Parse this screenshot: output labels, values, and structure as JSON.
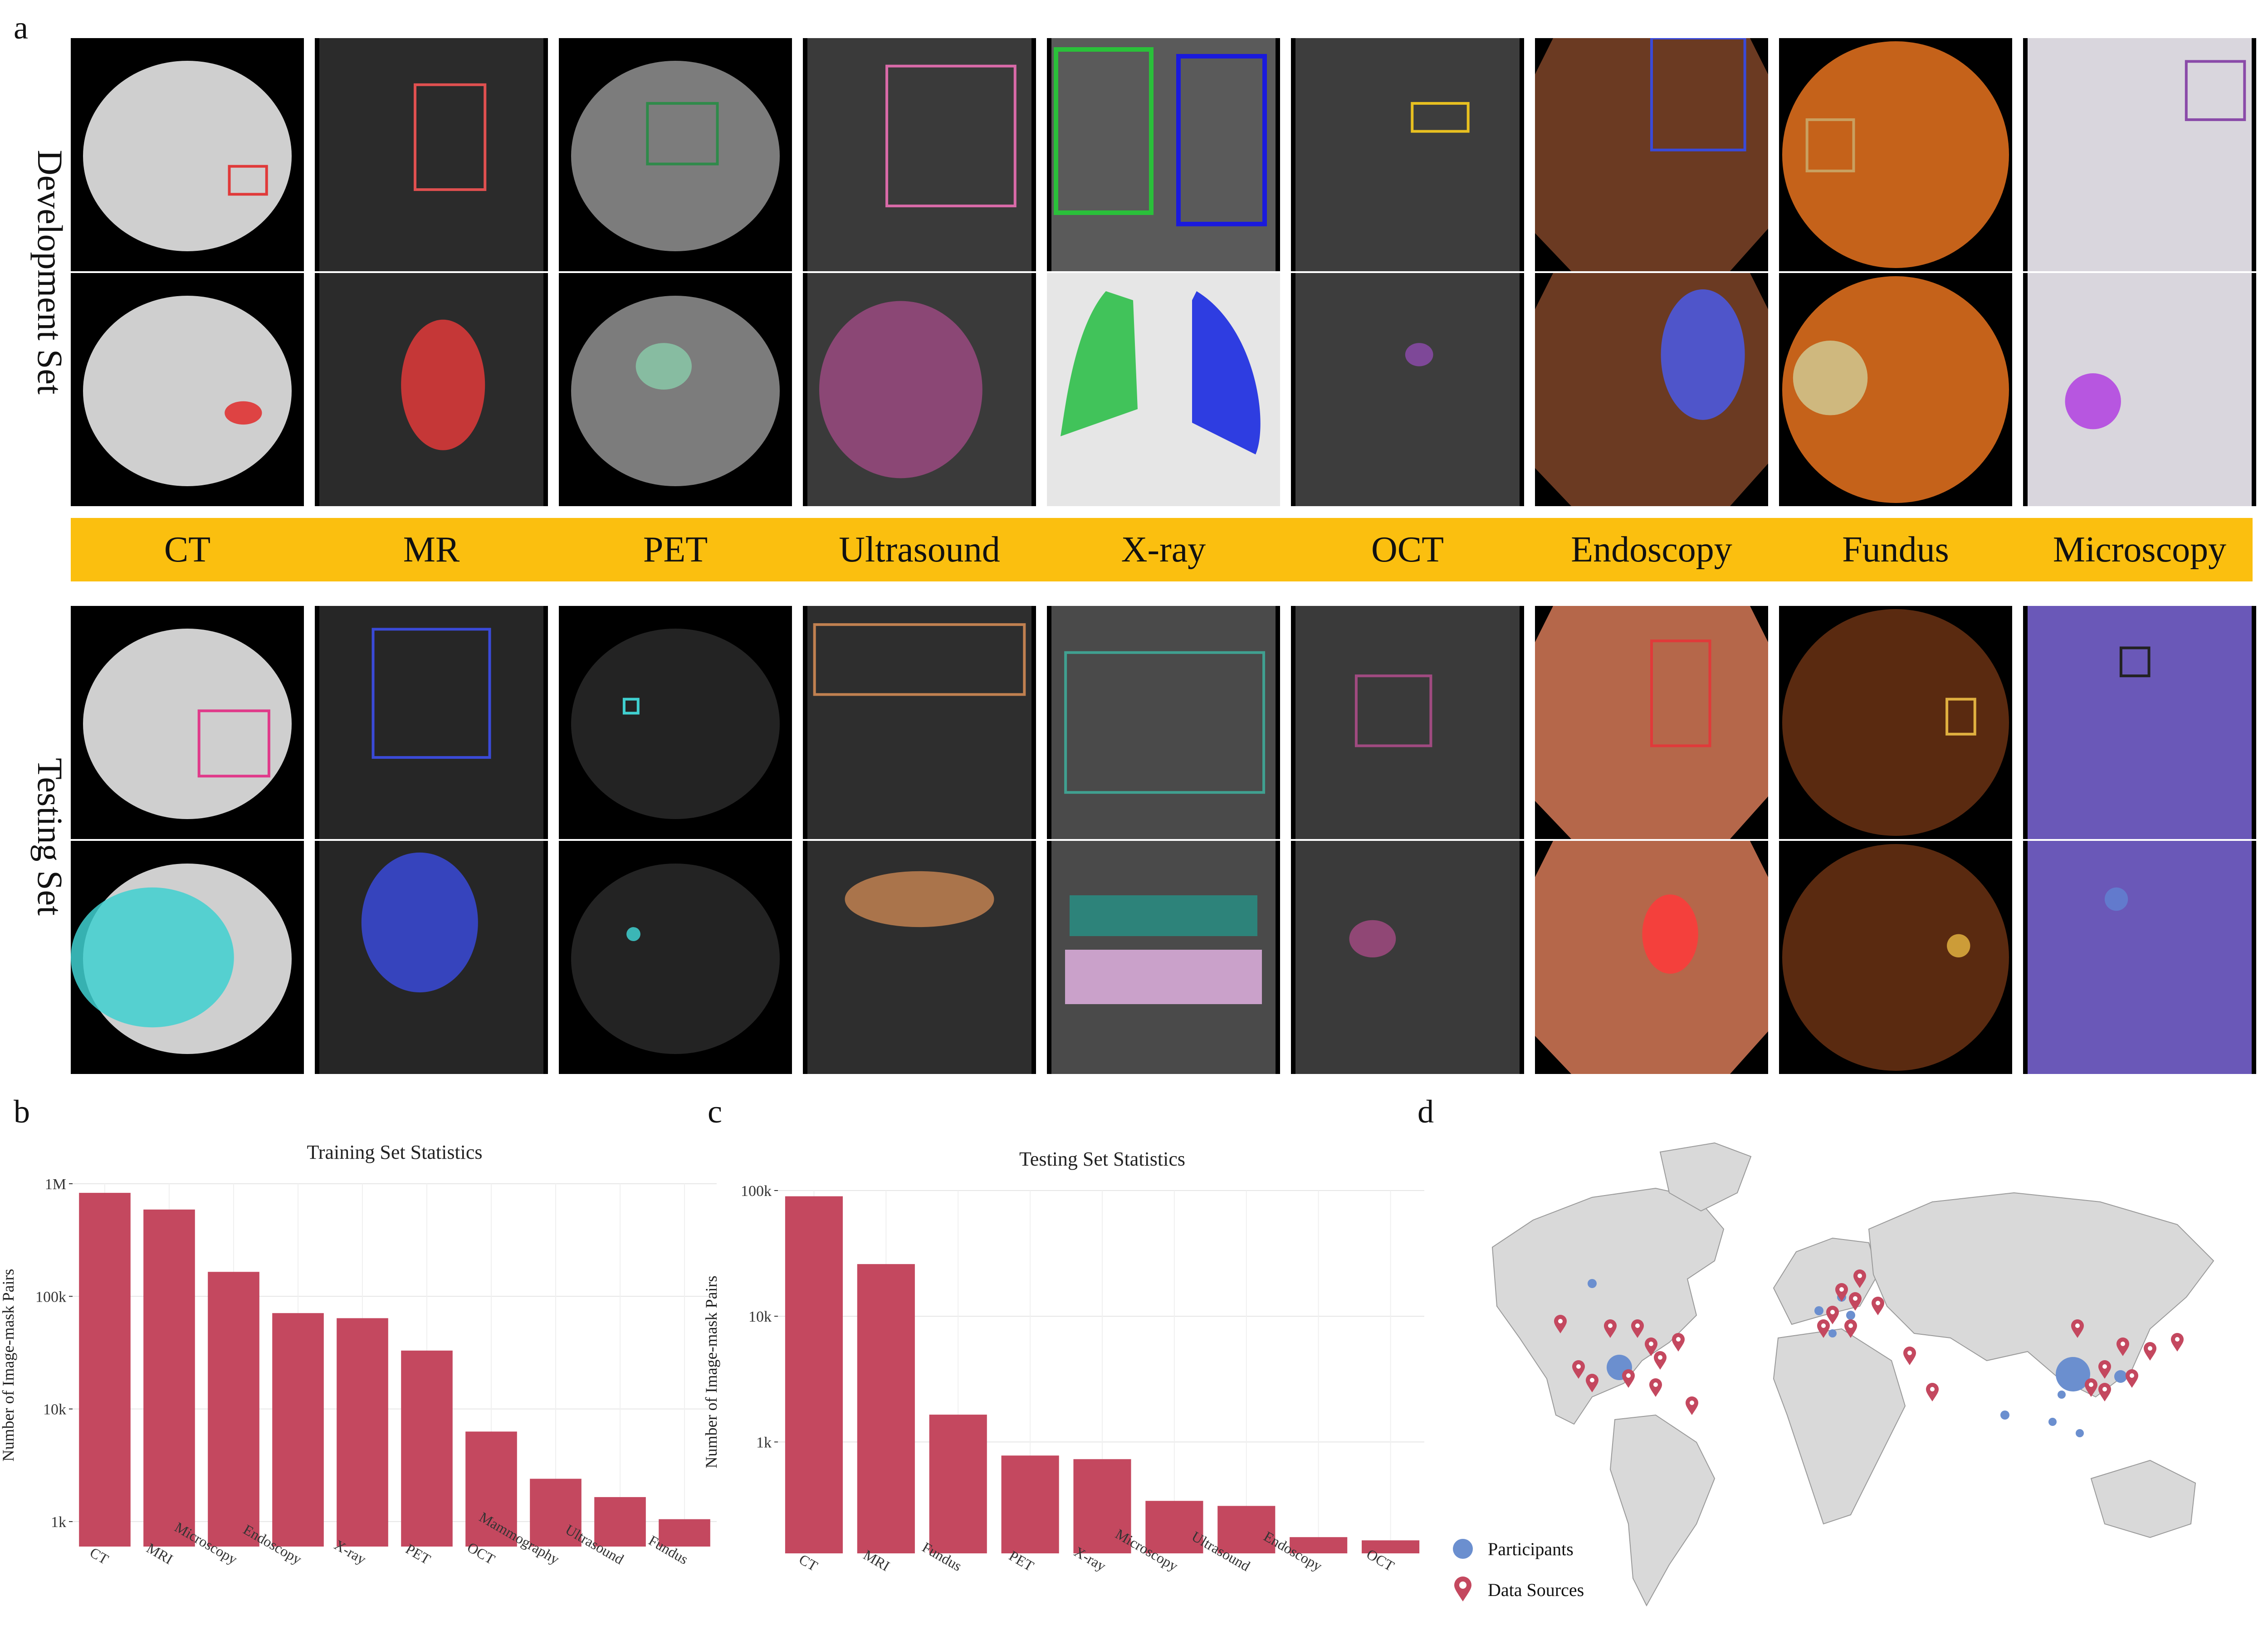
{
  "panel_labels": {
    "a": "a",
    "b": "b",
    "c": "c",
    "d": "d"
  },
  "row_groups": {
    "development": "Development Set",
    "testing": "Testing Set"
  },
  "modalities": [
    "CT",
    "MR",
    "PET",
    "Ultrasound",
    "X-ray",
    "OCT",
    "Endoscopy",
    "Fundus",
    "Microscopy"
  ],
  "image_rows": [
    {
      "name": "development-boxes"
    },
    {
      "name": "development-masks"
    },
    {
      "name": "testing-boxes"
    },
    {
      "name": "testing-masks"
    }
  ],
  "chart_data": [
    {
      "type": "bar",
      "title": "Training Set Statistics",
      "ylabel": "Number of Image-mask Pairs",
      "xlabel": "",
      "yscale": "log",
      "ylim": [
        600,
        1000000
      ],
      "yticks": [
        1000,
        10000,
        100000,
        1000000
      ],
      "yticklabels": [
        "1k",
        "10k",
        "100k",
        "1M"
      ],
      "categories": [
        "CT",
        "MRI",
        "Microscopy",
        "Endoscopy",
        "X-ray",
        "PET",
        "OCT",
        "Mammography",
        "Ultrasound",
        "Fundus"
      ],
      "values": [
        830000,
        590000,
        165000,
        71000,
        64000,
        33000,
        6300,
        2400,
        1650,
        1050
      ],
      "color": "#c4485f",
      "grid": true
    },
    {
      "type": "bar",
      "title": "Testing Set Statistics",
      "ylabel": "Number of Image-mask Pairs",
      "xlabel": "",
      "yscale": "log",
      "ylim": [
        130,
        100000
      ],
      "yticks": [
        1000,
        10000,
        100000
      ],
      "yticklabels": [
        "1k",
        "10k",
        "100k"
      ],
      "categories": [
        "CT",
        "MRI",
        "Fundus",
        "PET",
        "X-ray",
        "Microscopy",
        "Ultrasound",
        "Endoscopy",
        "OCT"
      ],
      "values": [
        90000,
        26000,
        1650,
        780,
        730,
        340,
        310,
        175,
        165
      ],
      "color": "#c4485f",
      "grid": true
    }
  ],
  "map": {
    "legend": [
      {
        "label": "Participants",
        "color": "#6b8fcf",
        "icon": "circle-marker-icon"
      },
      {
        "label": "Data Sources",
        "color": "#c4485f",
        "icon": "location-pin-icon"
      }
    ]
  }
}
